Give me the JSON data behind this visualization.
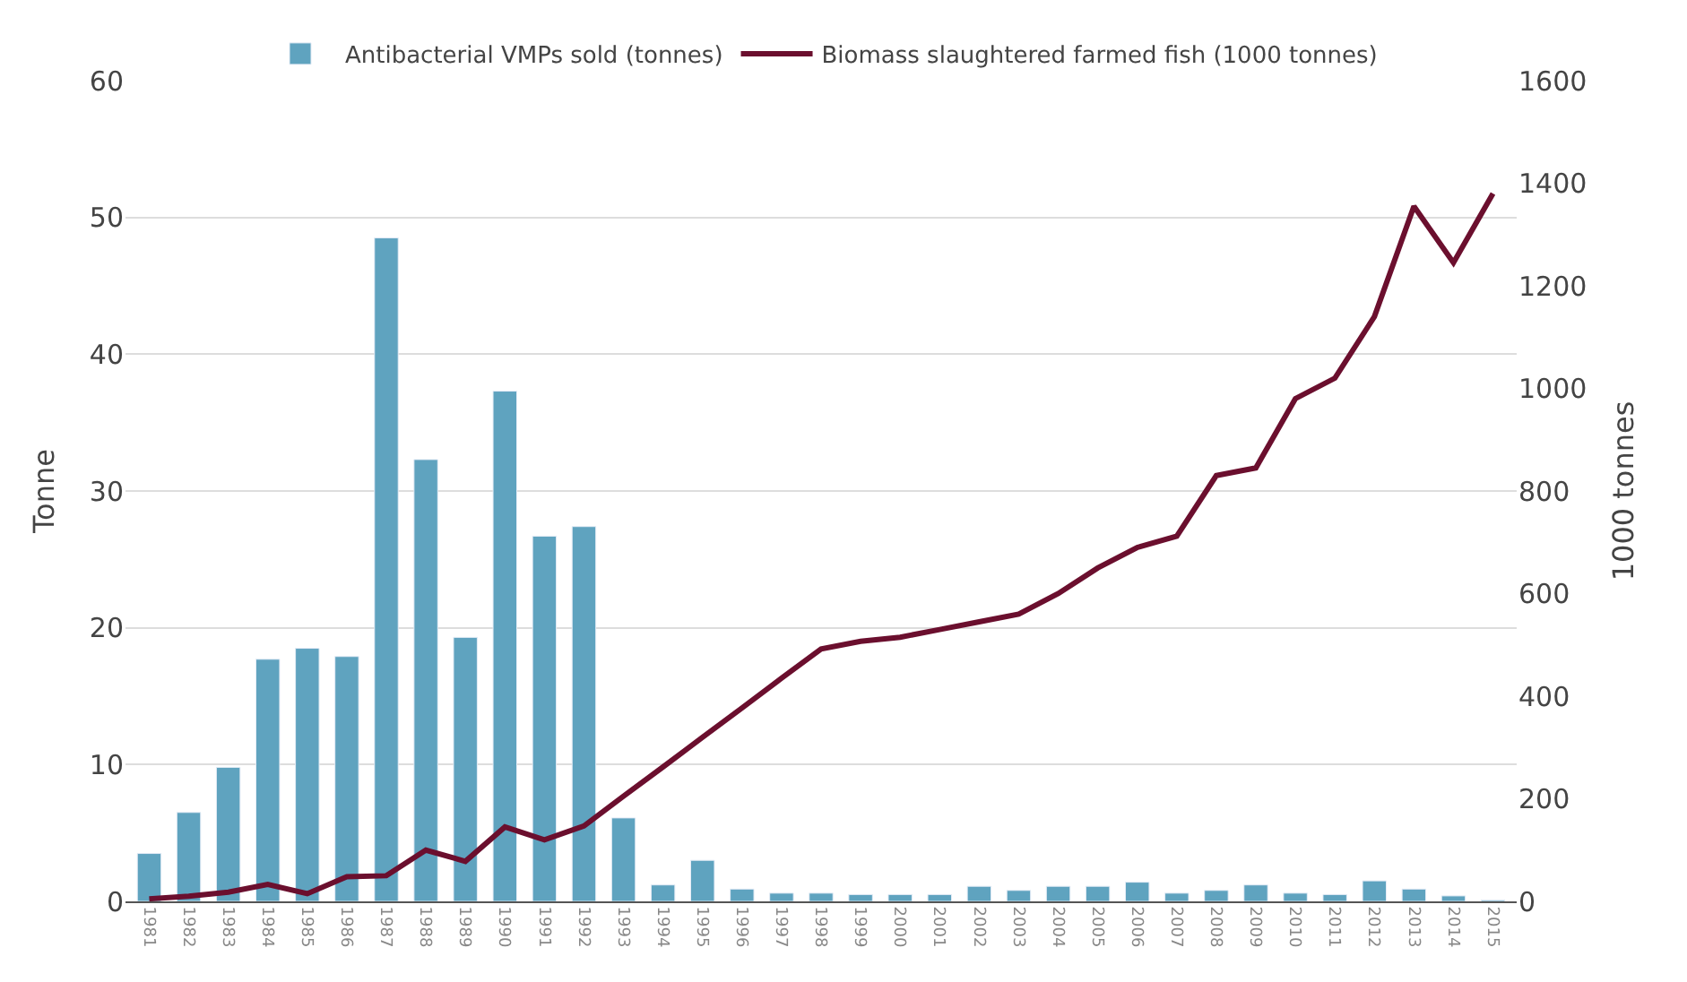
{
  "chart_data": {
    "type": "bar",
    "categories": [
      "1981",
      "1982",
      "1983",
      "1984",
      "1985",
      "1986",
      "1987",
      "1988",
      "1989",
      "1990",
      "1991",
      "1992",
      "1993",
      "1994",
      "1995",
      "1996",
      "1997",
      "1998",
      "1999",
      "2000",
      "2001",
      "2002",
      "2003",
      "2004",
      "2005",
      "2006",
      "2007",
      "2008",
      "2009",
      "2010",
      "2011",
      "2012",
      "2013",
      "2014",
      "2015"
    ],
    "series": [
      {
        "name": "Antibacterial VMPs sold (tonnes)",
        "color": "#5fa3bf",
        "values": [
          3.5,
          6.5,
          9.8,
          17.7,
          18.5,
          17.9,
          48.5,
          32.3,
          19.3,
          37.3,
          26.7,
          27.4,
          6.1,
          1.2,
          3.0,
          0.9,
          0.6,
          0.6,
          0.5,
          0.5,
          0.5,
          1.1,
          0.8,
          1.1,
          1.1,
          1.4,
          0.6,
          0.8,
          1.2,
          0.6,
          0.5,
          1.5,
          0.9,
          0.4,
          0.1
        ]
      },
      {
        "name": "Biomass slaughtered farmed fish (1000 tonnes)",
        "type": "line",
        "axis": "y2",
        "color": "#6b0f2e",
        "values": [
          5,
          10,
          18,
          33,
          15,
          48,
          50,
          100,
          78,
          145,
          120,
          147,
          205,
          262,
          320,
          377,
          435,
          492,
          507,
          515,
          530,
          545,
          560,
          600,
          650,
          690,
          712,
          830,
          845,
          980,
          1020,
          1140,
          1355,
          1245,
          1380
        ]
      }
    ],
    "ylabel": "Tonne",
    "y2label": "1000 tonnes",
    "ylim": [
      0,
      60
    ],
    "yticks": [
      0,
      10,
      20,
      30,
      40,
      50,
      60
    ],
    "y2lim": [
      0,
      1600
    ],
    "y2ticks": [
      0,
      200,
      400,
      600,
      800,
      1000,
      1200,
      1400,
      1600
    ],
    "grid": "y",
    "legend": "top",
    "marker": "none",
    "line_style": "solid"
  }
}
